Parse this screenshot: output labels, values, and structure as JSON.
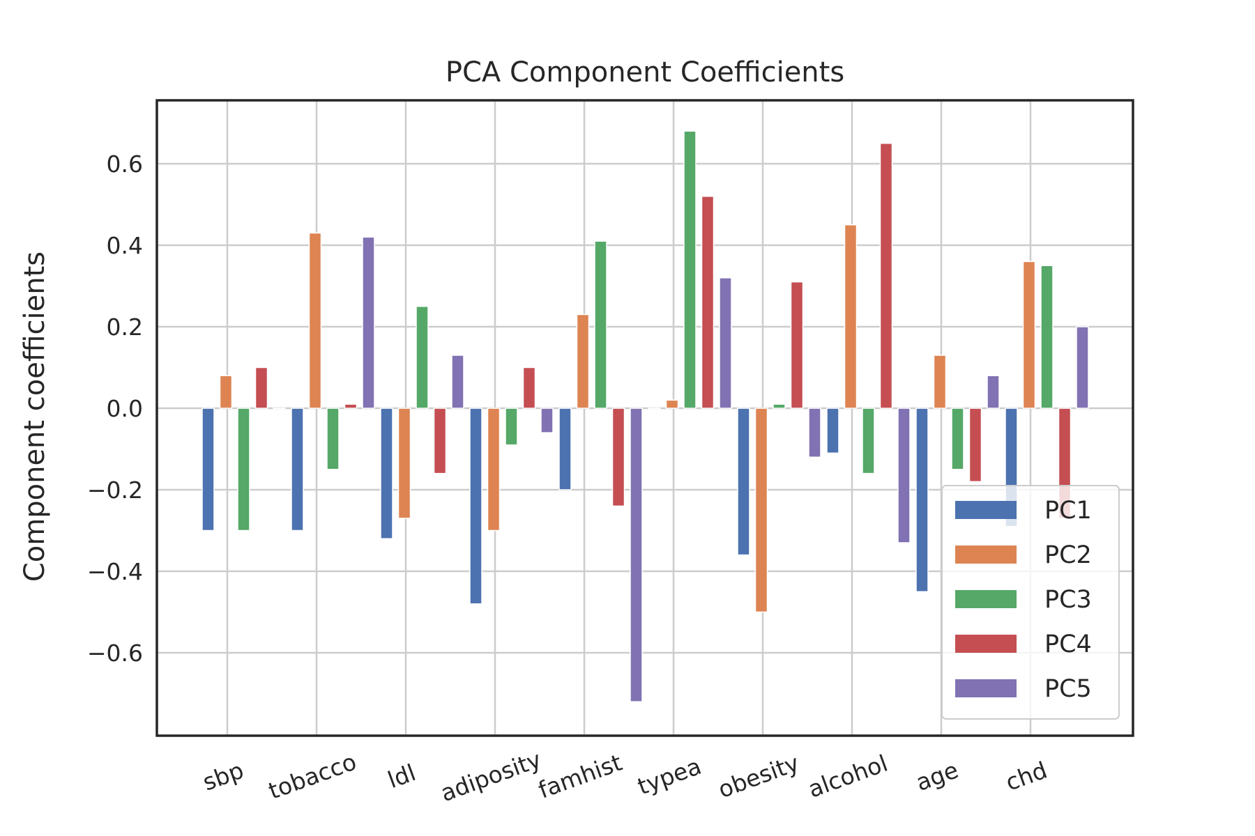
{
  "chart_data": {
    "type": "bar",
    "title": "PCA Component Coefficients",
    "xlabel": "",
    "ylabel": "Component coefficients",
    "categories": [
      "sbp",
      "tobacco",
      "ldl",
      "adiposity",
      "famhist",
      "typea",
      "obesity",
      "alcohol",
      "age",
      "chd"
    ],
    "series": [
      {
        "name": "PC1",
        "color": "#4c72b0",
        "values": [
          -0.3,
          -0.3,
          -0.32,
          -0.48,
          -0.2,
          0.0,
          -0.36,
          -0.11,
          -0.45,
          -0.29
        ]
      },
      {
        "name": "PC2",
        "color": "#dd8452",
        "values": [
          0.08,
          0.43,
          -0.27,
          -0.3,
          0.23,
          0.02,
          -0.5,
          0.45,
          0.13,
          0.36
        ]
      },
      {
        "name": "PC3",
        "color": "#55a868",
        "values": [
          -0.3,
          -0.15,
          0.25,
          -0.09,
          0.41,
          0.68,
          0.01,
          -0.16,
          -0.15,
          0.35
        ]
      },
      {
        "name": "PC4",
        "color": "#c44e52",
        "values": [
          0.1,
          0.01,
          -0.16,
          0.1,
          -0.24,
          0.52,
          0.31,
          0.65,
          -0.18,
          -0.27
        ]
      },
      {
        "name": "PC5",
        "color": "#8172b3",
        "values": [
          0.0,
          0.42,
          0.13,
          -0.06,
          -0.72,
          0.32,
          -0.12,
          -0.33,
          0.08,
          0.2
        ]
      }
    ],
    "ylim": [
      -0.8,
      0.75
    ],
    "yticks": [
      "0.6",
      "0.4",
      "0.2",
      "0.0",
      "−0.2",
      "−0.4",
      "−0.6"
    ],
    "ytick_values": [
      0.6,
      0.4,
      0.2,
      0.0,
      -0.2,
      -0.4,
      -0.6
    ],
    "grid": true,
    "legend_position": "lower-right"
  }
}
